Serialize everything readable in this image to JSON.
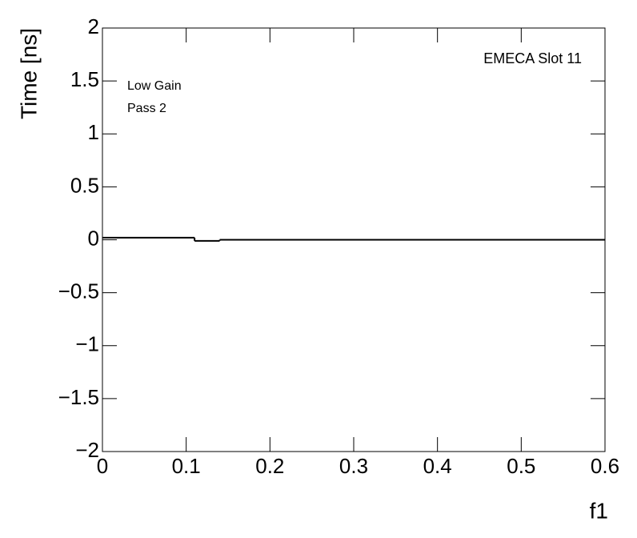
{
  "chart_data": {
    "type": "histogram",
    "x_label": "f1",
    "y_label": "Time [ns]",
    "annotations": [
      "EMECA Slot 11",
      "Low Gain",
      "Pass 2"
    ],
    "bins": [
      0,
      0.11,
      0.14,
      0.6
    ],
    "values": [
      0.02,
      -0.01,
      0
    ],
    "color": "#000000",
    "xlim": [
      0,
      0.6
    ],
    "ylim": [
      -2,
      2
    ],
    "xticks": [
      0,
      0.1,
      0.2,
      0.3,
      0.4,
      0.5,
      0.6
    ],
    "yticks": [
      {
        "value": -2,
        "label": "−2"
      },
      {
        "value": -1.5,
        "label": "−1.5"
      },
      {
        "value": -1,
        "label": "−1"
      },
      {
        "value": -0.5,
        "label": "−0.5"
      },
      0,
      0.5,
      1,
      1.5,
      2
    ]
  }
}
